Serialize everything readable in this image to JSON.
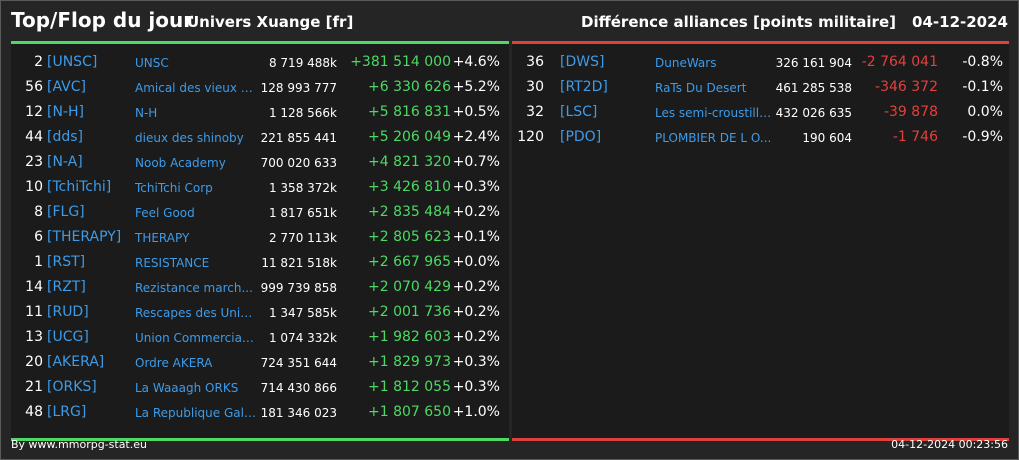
{
  "header": {
    "title": "Top/Flop du jour",
    "subtitle": "Univers Xuange [fr]",
    "right_title": "Différence alliances [points militaire]",
    "date": "04-12-2024"
  },
  "top": [
    {
      "rank": "2",
      "tag": "[UNSC]",
      "name": "UNSC",
      "points": "8 719 488k",
      "diff": "+381 514 000",
      "pct": "+4.6%"
    },
    {
      "rank": "56",
      "tag": "[AVC]",
      "name": "Amical des vieux co...",
      "points": "128 993 777",
      "diff": "+6 330 626",
      "pct": "+5.2%"
    },
    {
      "rank": "12",
      "tag": "[N-H]",
      "name": "N-H",
      "points": "1 128 566k",
      "diff": "+5 816 831",
      "pct": "+0.5%"
    },
    {
      "rank": "44",
      "tag": "[dds]",
      "name": "dieux des shinoby",
      "points": "221 855 441",
      "diff": "+5 206 049",
      "pct": "+2.4%"
    },
    {
      "rank": "23",
      "tag": "[N-A]",
      "name": "Noob Academy",
      "points": "700 020 633",
      "diff": "+4 821 320",
      "pct": "+0.7%"
    },
    {
      "rank": "10",
      "tag": "[TchiTchi]",
      "name": "TchiTchi Corp",
      "points": "1 358 372k",
      "diff": "+3 426 810",
      "pct": "+0.3%"
    },
    {
      "rank": "8",
      "tag": "[FLG]",
      "name": "Feel Good",
      "points": "1 817 651k",
      "diff": "+2 835 484",
      "pct": "+0.2%"
    },
    {
      "rank": "6",
      "tag": "[THERAPY]",
      "name": "THERAPY",
      "points": "2 770 113k",
      "diff": "+2 805 623",
      "pct": "+0.1%"
    },
    {
      "rank": "1",
      "tag": "[RST]",
      "name": "RESISTANCE",
      "points": "11 821 518k",
      "diff": "+2 667 965",
      "pct": "+0.0%"
    },
    {
      "rank": "14",
      "tag": "[RZT]",
      "name": "Rezistance march...",
      "points": "999 739 858",
      "diff": "+2 070 429",
      "pct": "+0.2%"
    },
    {
      "rank": "11",
      "tag": "[RUD]",
      "name": "Rescapes des Univ...",
      "points": "1 347 585k",
      "diff": "+2 001 736",
      "pct": "+0.2%"
    },
    {
      "rank": "13",
      "tag": "[UCG]",
      "name": "Union Commerciale...",
      "points": "1 074 332k",
      "diff": "+1 982 603",
      "pct": "+0.2%"
    },
    {
      "rank": "20",
      "tag": "[AKERA]",
      "name": "Ordre AKERA",
      "points": "724 351 644",
      "diff": "+1 829 973",
      "pct": "+0.3%"
    },
    {
      "rank": "21",
      "tag": "[ORKS]",
      "name": "La Waaagh ORKS",
      "points": "714 430 866",
      "diff": "+1 812 055",
      "pct": "+0.3%"
    },
    {
      "rank": "48",
      "tag": "[LRG]",
      "name": "La Republique Gala...",
      "points": "181 346 023",
      "diff": "+1 807 650",
      "pct": "+1.0%"
    }
  ],
  "flop": [
    {
      "rank": "36",
      "tag": "[DWS]",
      "name": "DuneWars",
      "points": "326 161 904",
      "diff": "-2 764 041",
      "pct": "-0.8%"
    },
    {
      "rank": "30",
      "tag": "[RT2D]",
      "name": "RaTs Du Desert",
      "points": "461 285 538",
      "diff": "-346 372",
      "pct": "-0.1%"
    },
    {
      "rank": "32",
      "tag": "[LSC]",
      "name": "Les semi-croustilla...",
      "points": "432 026 635",
      "diff": "-39 878",
      "pct": "0.0%"
    },
    {
      "rank": "120",
      "tag": "[PDO]",
      "name": "PLOMBIER DE L O...",
      "points": "190 604",
      "diff": "-1 746",
      "pct": "-0.9%"
    }
  ],
  "footer": {
    "credit": "By www.mmorpg-stat.eu",
    "timestamp": "04-12-2024 00:23:56"
  },
  "colors": {
    "positive": "#4cd964",
    "negative": "#e0413d",
    "link": "#3d9be9"
  }
}
